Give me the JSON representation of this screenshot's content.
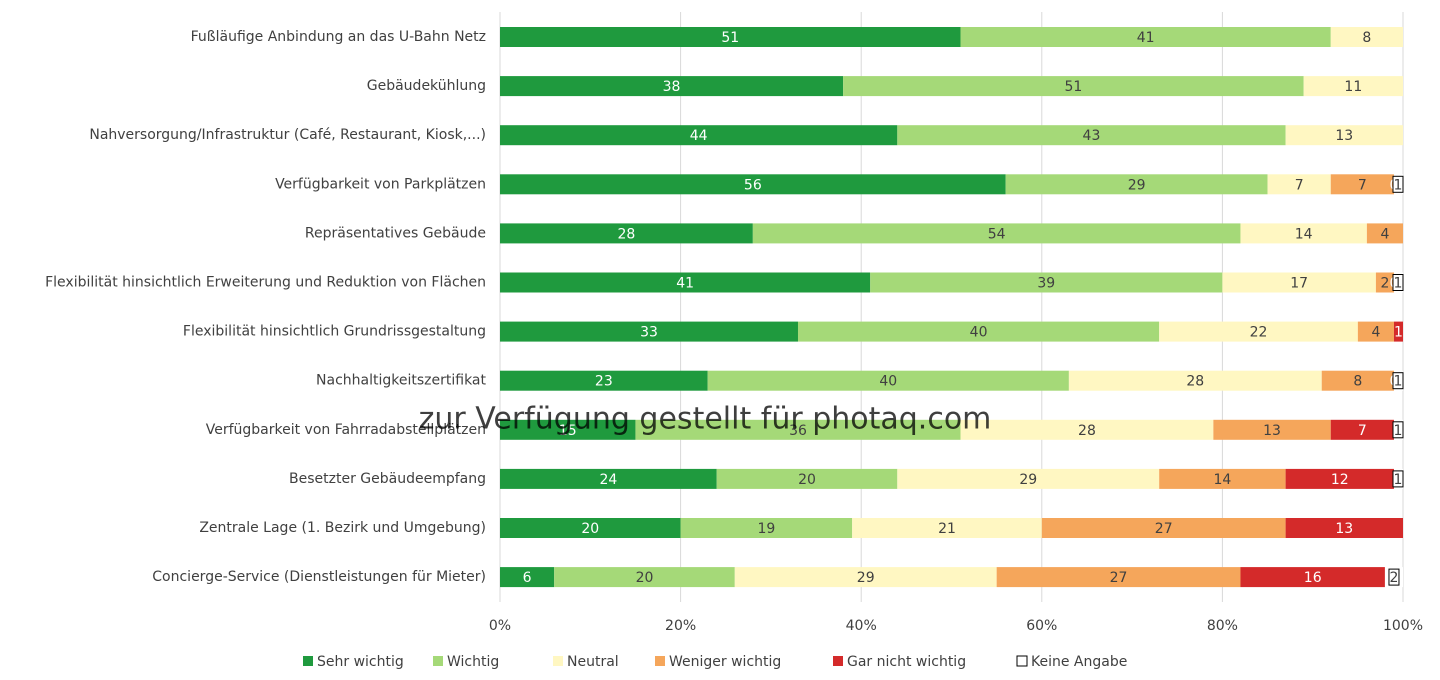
{
  "chart_data": {
    "type": "stacked-bar-horizontal",
    "watermark": "zur Verfügung gestellt für photaq.com",
    "categories": [
      "Fußläufige Anbindung an das U-Bahn Netz",
      "Gebäudekühlung",
      "Nahversorgung/Infrastruktur (Café, Restaurant, Kiosk,...)",
      "Verfügbarkeit von Parkplätzen",
      "Repräsentatives Gebäude",
      "Flexibilität hinsichtlich Erweiterung und Reduktion von Flächen",
      "Flexibilität hinsichtlich Grundrissgestaltung",
      "Nachhaltigkeitszertifikat",
      "Verfügbarkeit von Fahrradabstellplätzen",
      "Besetzter Gebäudeempfang",
      "Zentrale Lage (1. Bezirk und Umgebung)",
      "Concierge-Service (Dienstleistungen für Mieter)"
    ],
    "series": [
      {
        "name": "Sehr wichtig",
        "color": "#1f9a3e",
        "values": [
          51,
          38,
          44,
          56,
          28,
          41,
          33,
          23,
          15,
          24,
          20,
          6
        ]
      },
      {
        "name": "Wichtig",
        "color": "#a5d978",
        "values": [
          41,
          51,
          43,
          29,
          54,
          39,
          40,
          40,
          36,
          20,
          19,
          20
        ]
      },
      {
        "name": "Neutral",
        "color": "#fff7c2",
        "values": [
          8,
          11,
          13,
          7,
          14,
          17,
          22,
          28,
          28,
          29,
          21,
          29
        ]
      },
      {
        "name": "Weniger wichtig",
        "color": "#f5a65b",
        "values": [
          null,
          null,
          null,
          7,
          4,
          2,
          4,
          8,
          13,
          14,
          27,
          27
        ]
      },
      {
        "name": "Gar nicht wichtig",
        "color": "#d42a2a",
        "values": [
          null,
          null,
          null,
          0,
          null,
          0,
          1,
          0,
          7,
          12,
          13,
          16
        ]
      },
      {
        "name": "Keine Angabe",
        "color": "#ffffff",
        "values": [
          null,
          null,
          null,
          1,
          null,
          1,
          null,
          1,
          1,
          1,
          null,
          2
        ]
      }
    ],
    "xlim": [
      0,
      100
    ],
    "xticks": [
      {
        "value": 0,
        "label": "0%"
      },
      {
        "value": 20,
        "label": "20%"
      },
      {
        "value": 40,
        "label": "40%"
      },
      {
        "value": 60,
        "label": "60%"
      },
      {
        "value": 80,
        "label": "80%"
      },
      {
        "value": 100,
        "label": "100%"
      }
    ],
    "grid": true
  }
}
